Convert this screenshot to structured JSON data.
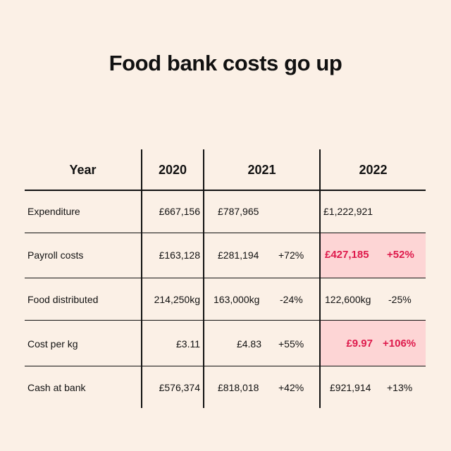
{
  "title": "Food bank costs go up",
  "colors": {
    "background": "#fbf0e6",
    "highlight": "#fdd5d5",
    "accent": "#de1a4c",
    "text": "#111111"
  },
  "chart_data": {
    "type": "table",
    "title": "Food bank costs go up",
    "columns": [
      "Year",
      "2020",
      "2021",
      "2022"
    ],
    "rows": [
      {
        "label": "Expenditure",
        "y2020": "£667,156",
        "y2021": "£787,965",
        "c2021": "",
        "y2022": "£1,222,921",
        "c2022": ""
      },
      {
        "label": "Payroll costs",
        "y2020": "£163,128",
        "y2021": "£281,194",
        "c2021": "+72%",
        "y2022": "£427,185",
        "c2022": "+52%"
      },
      {
        "label": "Food distributed",
        "y2020": "214,250kg",
        "y2021": "163,000kg",
        "c2021": "-24%",
        "y2022": "122,600kg",
        "c2022": "-25%"
      },
      {
        "label": "Cost per kg",
        "y2020": "£3.11",
        "y2021": "£4.83",
        "c2021": "+55%",
        "y2022": "£9.97",
        "c2022": "+106%"
      },
      {
        "label": "Cash at bank",
        "y2020": "£576,374",
        "y2021": "£818,018",
        "c2021": "+42%",
        "y2022": "£921,914",
        "c2022": "+13%"
      }
    ],
    "highlighted_2022_rows": [
      "Payroll costs",
      "Cost per kg"
    ]
  }
}
